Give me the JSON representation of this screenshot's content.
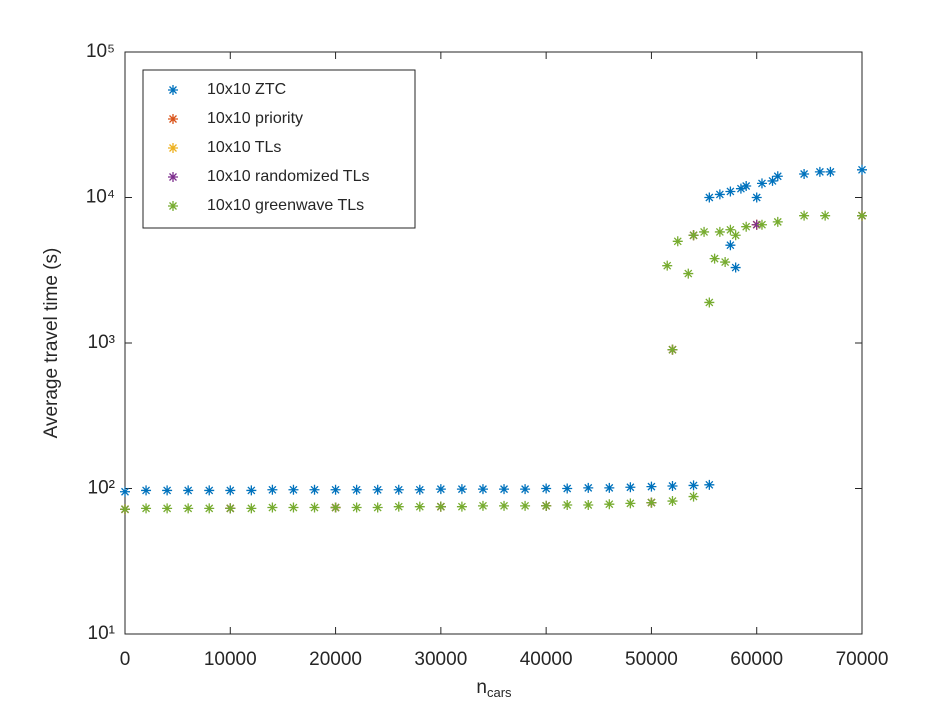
{
  "chart_data": {
    "type": "scatter",
    "yscale": "log",
    "legend": "upper-left",
    "ylabel": "Average travel time (s)",
    "xlabel": "n",
    "xlabel_sub": "cars",
    "xlim": [
      0,
      70000
    ],
    "xticks": [
      0,
      10000,
      20000,
      30000,
      40000,
      50000,
      60000,
      70000
    ],
    "ylim": [
      10,
      100000
    ],
    "yticks": [
      {
        "value": 10,
        "label": "10¹"
      },
      {
        "value": 100,
        "label": "10²"
      },
      {
        "value": 1000,
        "label": "10³"
      },
      {
        "value": 10000,
        "label": "10⁴"
      },
      {
        "value": 100000,
        "label": "10⁵"
      }
    ],
    "series": [
      {
        "name": "10x10 ZTC",
        "color": "#0072BD",
        "x": [
          0,
          2000,
          4000,
          6000,
          8000,
          10000,
          12000,
          14000,
          16000,
          18000,
          20000,
          22000,
          24000,
          26000,
          28000,
          30000,
          32000,
          34000,
          36000,
          38000,
          40000,
          42000,
          44000,
          46000,
          48000,
          50000,
          52000,
          54000,
          55500,
          55500,
          56500,
          57500,
          57500,
          58000,
          58500,
          59000,
          60000,
          60500,
          61500,
          62000,
          64500,
          66000,
          67000,
          70000
        ],
        "values": [
          95,
          97,
          97,
          97,
          97,
          97,
          97,
          98,
          98,
          98,
          98,
          98,
          98,
          98,
          98,
          99,
          99,
          99,
          99,
          99,
          100,
          100,
          101,
          101,
          102,
          103,
          104,
          105,
          106,
          10000,
          10500,
          11000,
          4700,
          3300,
          11500,
          12000,
          10000,
          12500,
          13000,
          14000,
          14500,
          15000,
          15000,
          15500
        ]
      },
      {
        "name": "10x10 priority",
        "color": "#D95319",
        "x": [
          0,
          10000,
          20000,
          30000,
          40000,
          50000,
          52000,
          54000,
          60000,
          70000
        ],
        "values": [
          72,
          73,
          74,
          75,
          76,
          80,
          900,
          5500,
          6500,
          7500
        ]
      },
      {
        "name": "10x10 TLs",
        "color": "#EDB120",
        "x": [
          0,
          10000,
          20000,
          30000,
          40000,
          50000,
          52000,
          54000,
          60000,
          70000
        ],
        "values": [
          72,
          73,
          74,
          75,
          76,
          80,
          900,
          5500,
          6500,
          7500
        ]
      },
      {
        "name": "10x10 randomized TLs",
        "color": "#7E2F8E",
        "x": [
          0,
          10000,
          20000,
          30000,
          40000,
          50000,
          52000,
          54000,
          60000,
          70000
        ],
        "values": [
          72,
          73,
          74,
          75,
          76,
          80,
          900,
          5500,
          6500,
          7500
        ]
      },
      {
        "name": "10x10 greenwave TLs",
        "color": "#77AC30",
        "x": [
          0,
          2000,
          4000,
          6000,
          8000,
          10000,
          12000,
          14000,
          16000,
          18000,
          20000,
          22000,
          24000,
          26000,
          28000,
          30000,
          32000,
          34000,
          36000,
          38000,
          40000,
          42000,
          44000,
          46000,
          48000,
          50000,
          52000,
          54000,
          51500,
          52000,
          52500,
          53500,
          54000,
          55000,
          55500,
          56000,
          56500,
          57000,
          57500,
          58000,
          59000,
          60500,
          62000,
          64500,
          66500,
          70000
        ],
        "values": [
          72,
          73,
          73,
          73,
          73,
          73,
          73,
          74,
          74,
          74,
          74,
          74,
          74,
          75,
          75,
          75,
          75,
          76,
          76,
          76,
          76,
          77,
          77,
          78,
          79,
          80,
          82,
          88,
          3400,
          900,
          5000,
          3000,
          5500,
          5800,
          1900,
          3800,
          5800,
          3600,
          6000,
          5500,
          6300,
          6500,
          6800,
          7500,
          7500,
          7500
        ]
      }
    ]
  }
}
